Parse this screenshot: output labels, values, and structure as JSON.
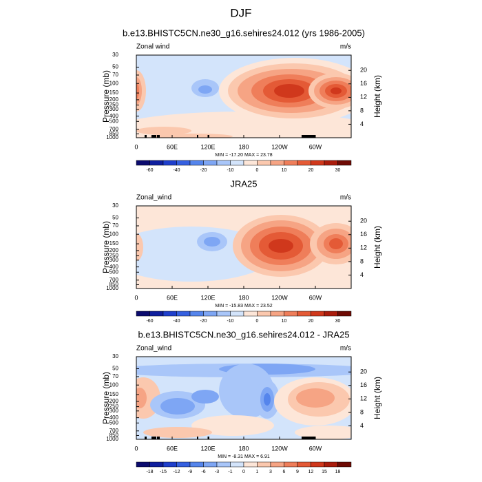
{
  "title": "DJF",
  "panels": [
    {
      "title": "b.e13.BHISTC5CN.ne30_g16.sehires24.012 (yrs 1986-2005)",
      "left_label": "Zonal wind",
      "right_label": "m/s",
      "y_axis_label": "Pressure (mb)",
      "y2_axis_label": "Height (km)",
      "ylim": [
        1000,
        30
      ],
      "log_scale": true,
      "yticks": [
        30,
        50,
        70,
        100,
        150,
        200,
        250,
        300,
        400,
        500,
        700,
        850,
        1000
      ],
      "y2ticks": [
        4,
        8,
        12,
        16,
        20
      ],
      "xlim": [
        0,
        360
      ],
      "xticks": [
        0,
        {
          "value": 60,
          "label": "60E"
        },
        {
          "value": 120,
          "label": "120E"
        },
        180,
        {
          "value": 240,
          "label": "120W"
        },
        {
          "value": 300,
          "label": "60W"
        }
      ],
      "stats": "MIN = -17.20  MAX = 23.78",
      "colorbar": {
        "labels": [
          -60,
          -40,
          -20,
          -10,
          0,
          10,
          20,
          30
        ],
        "label_every": 2
      }
    },
    {
      "title": "JRA25",
      "left_label": "Zonal_wind",
      "right_label": "m/s",
      "y_axis_label": "Pressure (mb)",
      "y2_axis_label": "Height (km)",
      "ylim": [
        1000,
        30
      ],
      "log_scale": true,
      "yticks": [
        30,
        50,
        70,
        100,
        150,
        200,
        250,
        300,
        400,
        500,
        700,
        850,
        1000
      ],
      "y2ticks": [
        4,
        8,
        12,
        16,
        20
      ],
      "xlim": [
        0,
        360
      ],
      "xticks": [
        0,
        {
          "value": 60,
          "label": "60E"
        },
        {
          "value": 120,
          "label": "120E"
        },
        180,
        {
          "value": 240,
          "label": "120W"
        },
        {
          "value": 300,
          "label": "60W"
        }
      ],
      "stats": "MIN = -15.83  MAX = 23.52",
      "colorbar": {
        "labels": [
          -60,
          -40,
          -20,
          -10,
          0,
          10,
          20,
          30
        ],
        "label_every": 2
      }
    },
    {
      "title": "b.e13.BHISTC5CN.ne30_g16.sehires24.012 - JRA25",
      "left_label": "Zonal_wind",
      "right_label": "m/s",
      "y_axis_label": "Pressure (mb)",
      "y2_axis_label": "Height (km)",
      "ylim": [
        1000,
        30
      ],
      "log_scale": true,
      "yticks": [
        30,
        50,
        70,
        100,
        150,
        200,
        250,
        300,
        400,
        500,
        700,
        850,
        1000
      ],
      "y2ticks": [
        4,
        8,
        12,
        16,
        20
      ],
      "xlim": [
        0,
        360
      ],
      "xticks": [
        0,
        {
          "value": 60,
          "label": "60E"
        },
        {
          "value": 120,
          "label": "120E"
        },
        180,
        {
          "value": 240,
          "label": "120W"
        },
        {
          "value": 300,
          "label": "60W"
        }
      ],
      "stats": "MIN = -8.31  MAX =  6.91",
      "colorbar": {
        "labels": [
          -18,
          -15,
          -12,
          -9,
          -6,
          -3,
          -1,
          0,
          1,
          3,
          6,
          9,
          12,
          15,
          18
        ],
        "label_every": 1
      }
    }
  ],
  "colors": [
    "#0b0b6e",
    "#0f1f9e",
    "#1f3fcc",
    "#3560e0",
    "#5585ec",
    "#7ea6f4",
    "#a9c6f9",
    "#d3e4fb",
    "#fde6d8",
    "#fbc8ae",
    "#f6a484",
    "#ef7e5a",
    "#e45a36",
    "#d0381c",
    "#aa1c0c",
    "#6e0a04"
  ]
}
